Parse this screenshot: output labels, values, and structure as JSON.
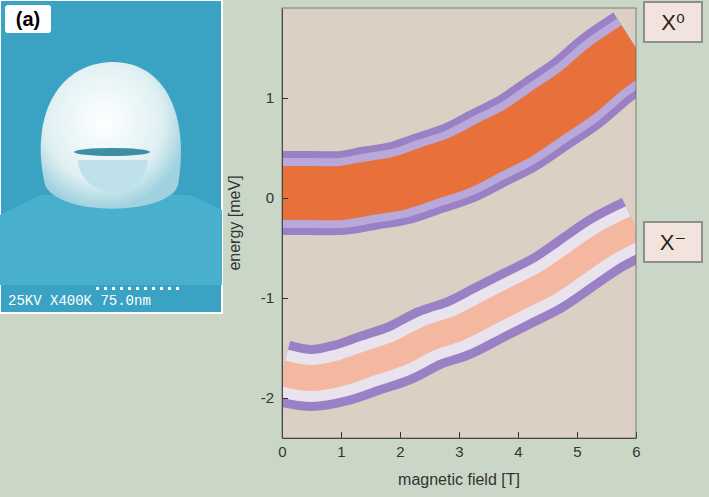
{
  "chart_data": {
    "type": "line",
    "xlabel": "magnetic field [T]",
    "ylabel": "energy [meV]",
    "annotations": [
      "(a)",
      "25KV X400K 75.0nm"
    ],
    "x": [
      0,
      0.5,
      1,
      1.5,
      2,
      2.5,
      3,
      3.5,
      4,
      4.5,
      5,
      5.5,
      6
    ],
    "series": [
      {
        "name": "X⁰",
        "color": "#e8703a",
        "values": [
          0.05,
          0.05,
          0.05,
          0.1,
          0.15,
          0.25,
          0.35,
          0.5,
          0.65,
          0.85,
          1.05,
          1.3,
          1.5
        ]
      },
      {
        "name": "X⁻",
        "color": "#f4b8a0",
        "values": [
          -1.75,
          -1.8,
          -1.75,
          -1.65,
          -1.55,
          -1.4,
          -1.3,
          -1.15,
          -1.0,
          -0.85,
          -0.65,
          -0.45,
          -0.3
        ]
      }
    ],
    "xlim": [
      0,
      6
    ],
    "ylim": [
      -2.4,
      1.9
    ],
    "xticks": [
      0,
      1,
      2,
      3,
      4,
      5,
      6
    ],
    "yticks": [
      -2,
      -1,
      0,
      1
    ],
    "legend": "right",
    "grid": false
  }
}
